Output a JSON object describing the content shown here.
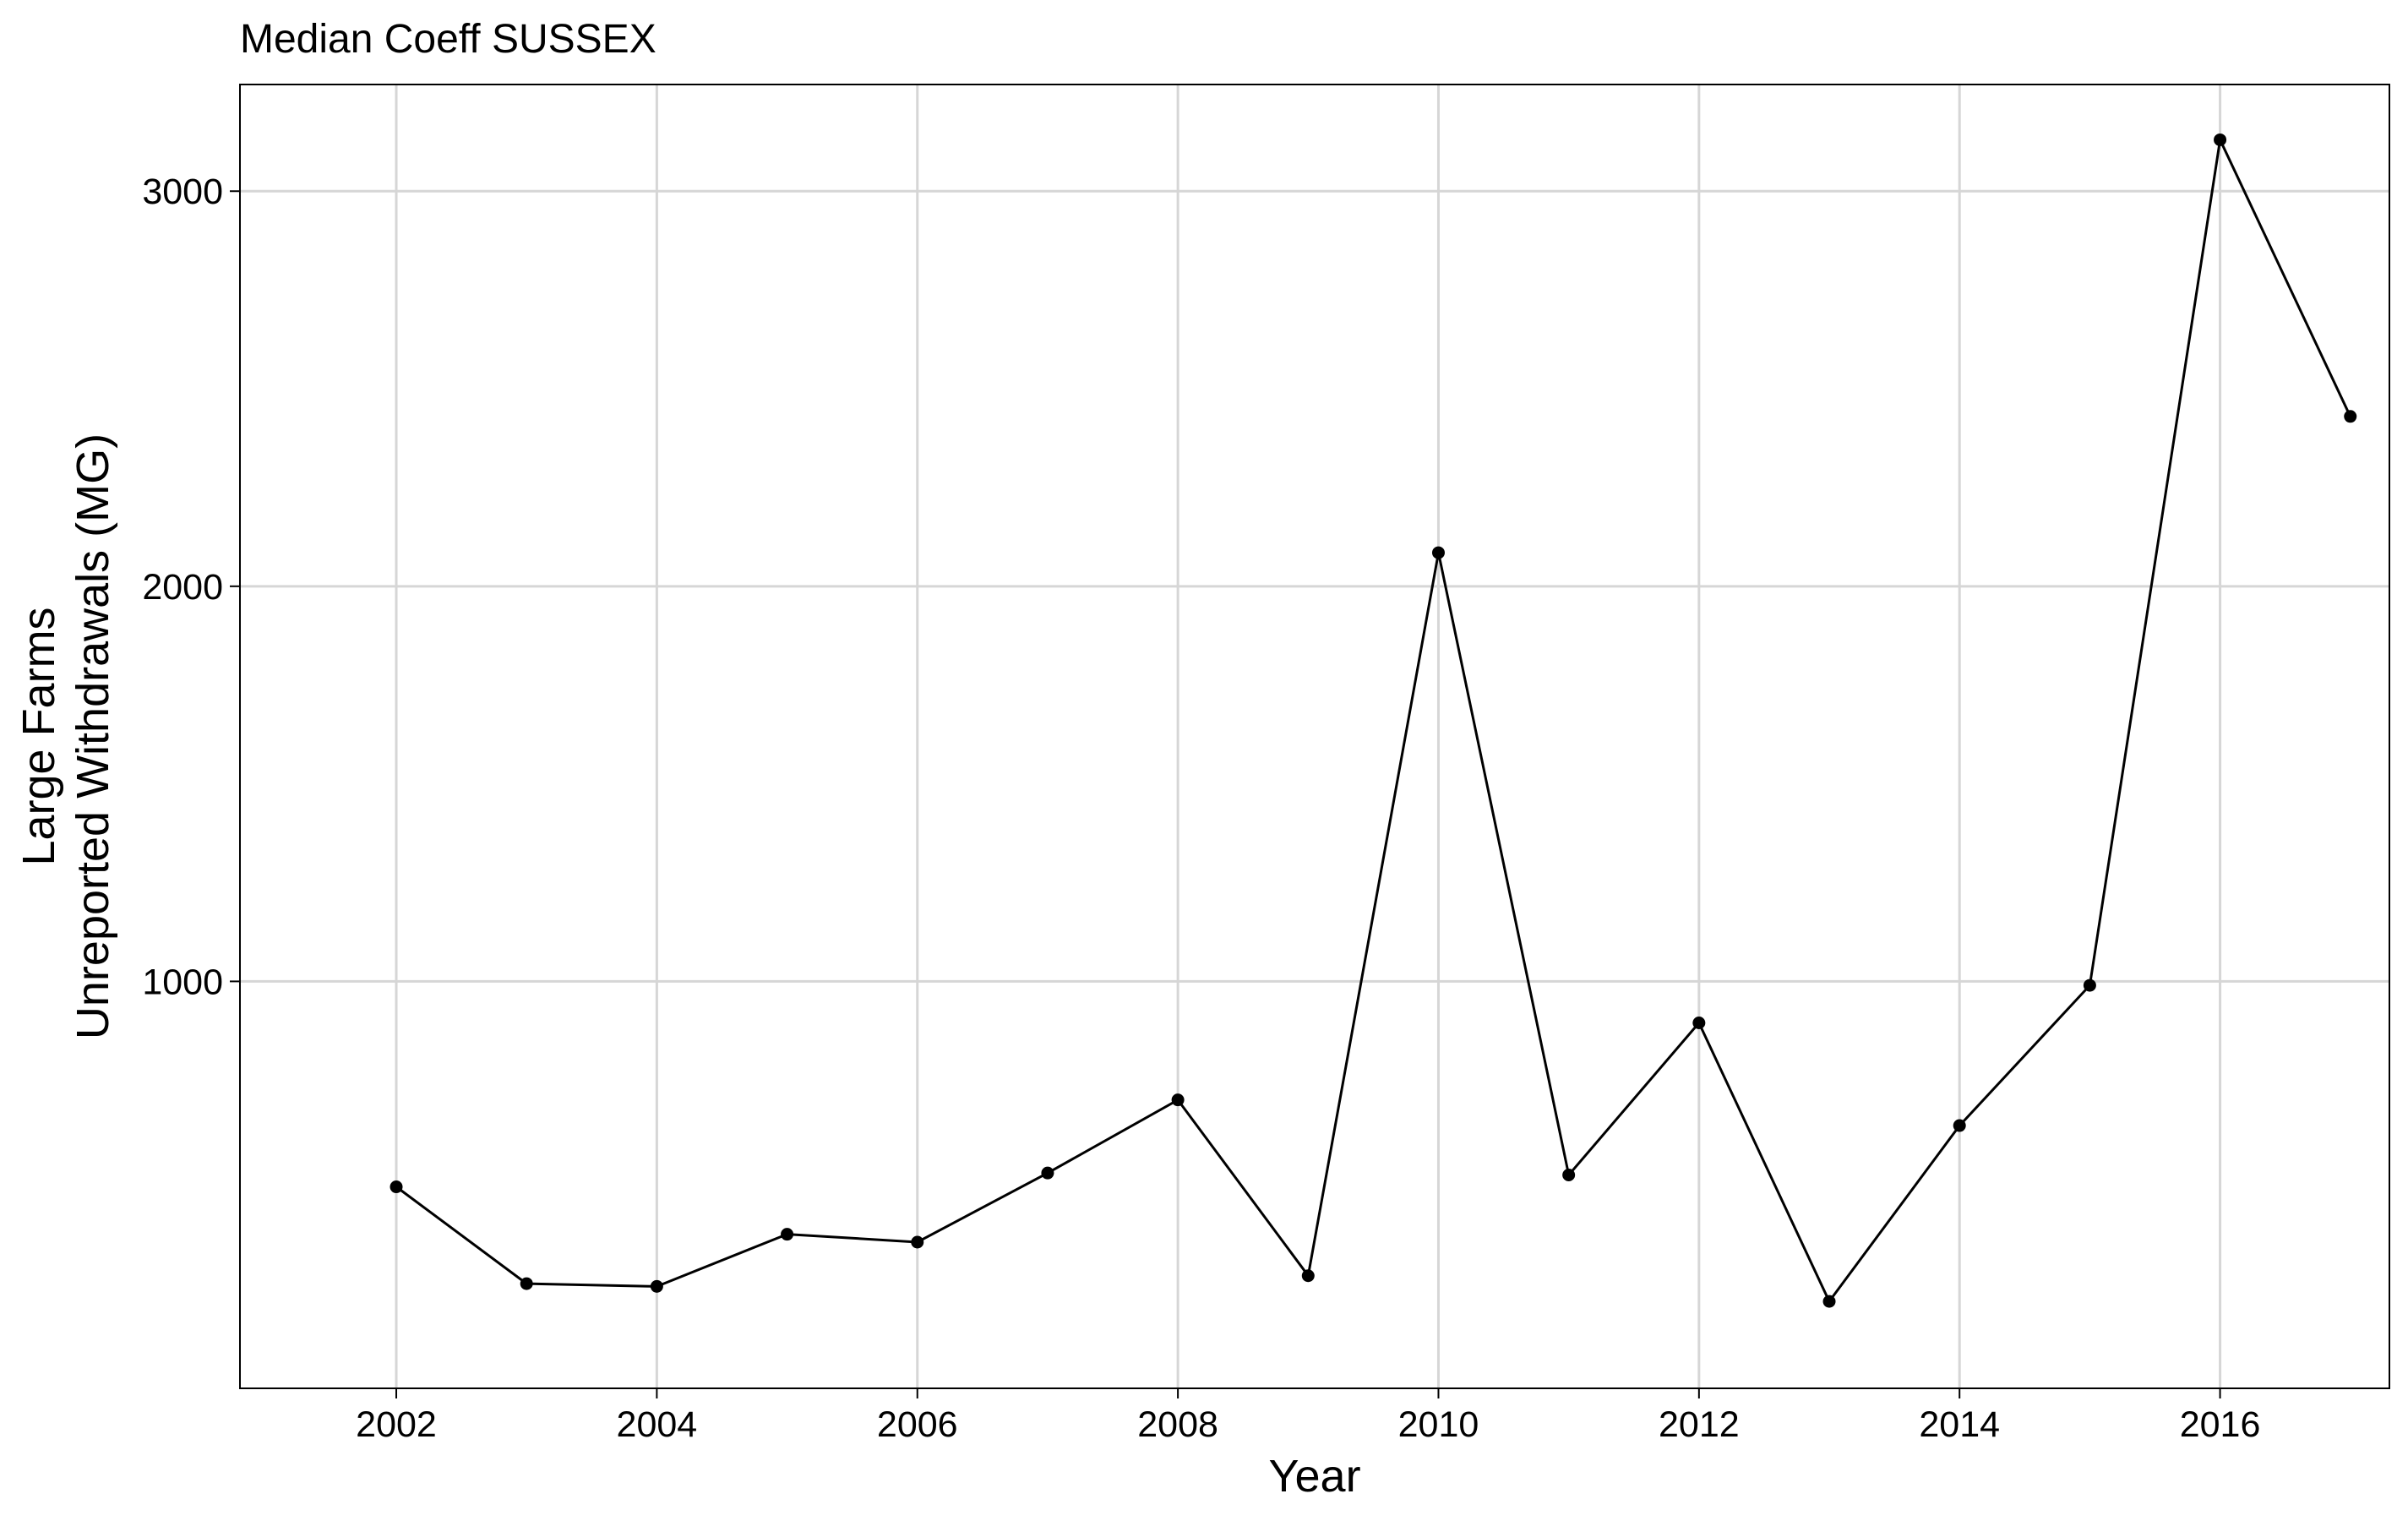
{
  "chart_data": {
    "type": "line",
    "title": "Median Coeff SUSSEX",
    "xlabel": "Year",
    "ylabel_line1": "Large Farms",
    "ylabel_line2": "Unreported Withdrawals (MG)",
    "x_ticks": [
      2002,
      2004,
      2006,
      2008,
      2010,
      2012,
      2014,
      2016
    ],
    "y_ticks": [
      1000,
      2000,
      3000
    ],
    "xlim": [
      2000.8,
      2017.3
    ],
    "ylim": [
      -30,
      3270
    ],
    "grid": true,
    "legend": "none",
    "series": [
      {
        "x": [
          2002,
          2003,
          2004,
          2005,
          2006,
          2007,
          2008,
          2009,
          2010,
          2011,
          2012,
          2013,
          2014,
          2015,
          2016,
          2017
        ],
        "y": [
          480,
          235,
          228,
          360,
          340,
          515,
          700,
          255,
          2085,
          510,
          895,
          190,
          635,
          990,
          3130,
          2430
        ]
      }
    ]
  }
}
